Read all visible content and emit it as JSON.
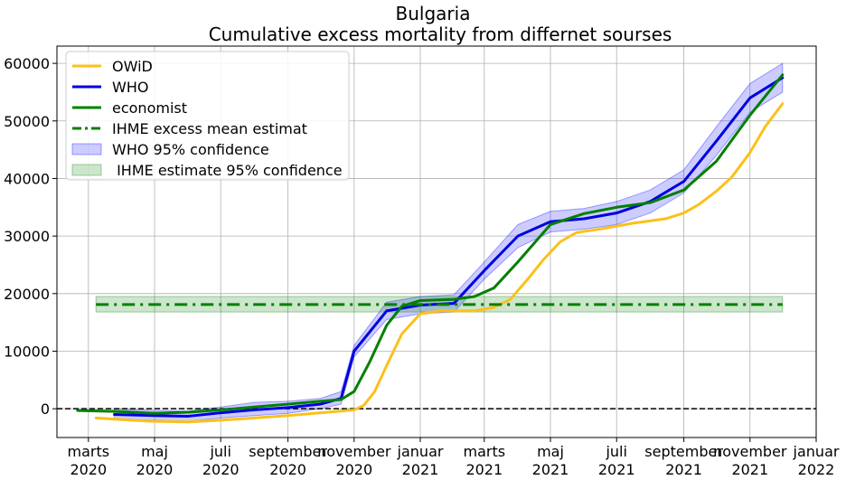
{
  "chart_data": {
    "type": "line",
    "title": "Bulgaria",
    "subtitle": "Cumulative excess mortality from differnet sourses",
    "xlabel": "",
    "ylabel": "",
    "x_range": [
      "2020-02-01",
      "2022-01-01"
    ],
    "ylim": [
      -5000,
      63000
    ],
    "grid": true,
    "legend_position": "top-left",
    "zero_line": true,
    "x_ticks": [
      {
        "date": "2020-03-01",
        "line1": "marts",
        "line2": "2020"
      },
      {
        "date": "2020-05-01",
        "line1": "maj",
        "line2": "2020"
      },
      {
        "date": "2020-07-01",
        "line1": "juli",
        "line2": "2020"
      },
      {
        "date": "2020-09-01",
        "line1": "september",
        "line2": "2020"
      },
      {
        "date": "2020-11-01",
        "line1": "november",
        "line2": "2020"
      },
      {
        "date": "2021-01-01",
        "line1": "januar",
        "line2": "2021"
      },
      {
        "date": "2021-03-01",
        "line1": "marts",
        "line2": "2021"
      },
      {
        "date": "2021-05-01",
        "line1": "maj",
        "line2": "2021"
      },
      {
        "date": "2021-07-01",
        "line1": "juli",
        "line2": "2021"
      },
      {
        "date": "2021-09-01",
        "line1": "september",
        "line2": "2021"
      },
      {
        "date": "2021-11-01",
        "line1": "november",
        "line2": "2021"
      },
      {
        "date": "2022-01-01",
        "line1": "januar",
        "line2": "2022"
      }
    ],
    "y_ticks": [
      {
        "value": 0,
        "label": "0"
      },
      {
        "value": 10000,
        "label": "10000"
      },
      {
        "value": 20000,
        "label": "20000"
      },
      {
        "value": 30000,
        "label": "30000"
      },
      {
        "value": 40000,
        "label": "40000"
      },
      {
        "value": 50000,
        "label": "50000"
      },
      {
        "value": 60000,
        "label": "60000"
      }
    ],
    "series": [
      {
        "name": "OWiD",
        "color": "#fac11b",
        "style": "solid",
        "points": [
          [
            "2020-03-08",
            -1600
          ],
          [
            "2020-04-01",
            -1900
          ],
          [
            "2020-05-01",
            -2200
          ],
          [
            "2020-06-01",
            -2300
          ],
          [
            "2020-07-01",
            -2000
          ],
          [
            "2020-08-01",
            -1600
          ],
          [
            "2020-09-01",
            -1200
          ],
          [
            "2020-10-01",
            -700
          ],
          [
            "2020-10-20",
            -400
          ],
          [
            "2020-11-01",
            -200
          ],
          [
            "2020-11-10",
            600
          ],
          [
            "2020-11-20",
            3000
          ],
          [
            "2020-12-01",
            7500
          ],
          [
            "2020-12-15",
            13000
          ],
          [
            "2021-01-01",
            16500
          ],
          [
            "2021-01-20",
            17000
          ],
          [
            "2021-02-20",
            17000
          ],
          [
            "2021-03-10",
            17600
          ],
          [
            "2021-03-25",
            19000
          ],
          [
            "2021-04-10",
            22500
          ],
          [
            "2021-04-25",
            26000
          ],
          [
            "2021-05-10",
            29000
          ],
          [
            "2021-05-25",
            30600
          ],
          [
            "2021-06-15",
            31200
          ],
          [
            "2021-07-15",
            32200
          ],
          [
            "2021-08-15",
            33000
          ],
          [
            "2021-09-01",
            34000
          ],
          [
            "2021-09-15",
            35500
          ],
          [
            "2021-10-01",
            37800
          ],
          [
            "2021-10-15",
            40200
          ],
          [
            "2021-11-01",
            44500
          ],
          [
            "2021-11-15",
            49000
          ],
          [
            "2021-12-01",
            53000
          ]
        ]
      },
      {
        "name": "WHO",
        "color": "#0000e0",
        "style": "solid",
        "points": [
          [
            "2020-03-25",
            -1000
          ],
          [
            "2020-05-01",
            -1200
          ],
          [
            "2020-06-01",
            -1300
          ],
          [
            "2020-07-01",
            -700
          ],
          [
            "2020-08-01",
            -200
          ],
          [
            "2020-09-01",
            200
          ],
          [
            "2020-10-01",
            800
          ],
          [
            "2020-10-20",
            1800
          ],
          [
            "2020-11-01",
            10000
          ],
          [
            "2020-12-01",
            17000
          ],
          [
            "2021-01-01",
            18000
          ],
          [
            "2021-02-01",
            18300
          ],
          [
            "2021-03-01",
            24000
          ],
          [
            "2021-04-01",
            30000
          ],
          [
            "2021-05-01",
            32500
          ],
          [
            "2021-06-01",
            33000
          ],
          [
            "2021-07-01",
            34000
          ],
          [
            "2021-08-01",
            36000
          ],
          [
            "2021-09-01",
            39500
          ],
          [
            "2021-10-01",
            46500
          ],
          [
            "2021-11-01",
            54000
          ],
          [
            "2021-12-01",
            57500
          ]
        ]
      },
      {
        "name": "economist",
        "color": "#008000",
        "style": "solid",
        "points": [
          [
            "2020-02-20",
            -300
          ],
          [
            "2020-04-01",
            -500
          ],
          [
            "2020-05-01",
            -800
          ],
          [
            "2020-06-01",
            -600
          ],
          [
            "2020-07-01",
            -200
          ],
          [
            "2020-08-01",
            300
          ],
          [
            "2020-09-01",
            800
          ],
          [
            "2020-10-01",
            1300
          ],
          [
            "2020-10-20",
            1600
          ],
          [
            "2020-11-01",
            3000
          ],
          [
            "2020-11-15",
            8000
          ],
          [
            "2020-12-01",
            14500
          ],
          [
            "2020-12-15",
            17800
          ],
          [
            "2021-01-01",
            18800
          ],
          [
            "2021-02-01",
            19000
          ],
          [
            "2021-02-20",
            19500
          ],
          [
            "2021-03-10",
            21000
          ],
          [
            "2021-04-01",
            25500
          ],
          [
            "2021-05-01",
            32000
          ],
          [
            "2021-06-01",
            33900
          ],
          [
            "2021-07-01",
            35000
          ],
          [
            "2021-08-01",
            35800
          ],
          [
            "2021-09-01",
            38000
          ],
          [
            "2021-10-01",
            43000
          ],
          [
            "2021-11-01",
            51000
          ],
          [
            "2021-12-01",
            58000
          ]
        ]
      },
      {
        "name": "IHME excess mean estimat",
        "color": "#008000",
        "style": "dashdot",
        "points": [
          [
            "2020-03-08",
            18100
          ],
          [
            "2021-12-01",
            18100
          ]
        ]
      }
    ],
    "bands": [
      {
        "name": "WHO 95% confidence",
        "color": "#0000ff",
        "opacity": 0.2,
        "points": [
          [
            "2020-03-25",
            -1900,
            0
          ],
          [
            "2020-05-01",
            -2000,
            -300
          ],
          [
            "2020-06-01",
            -2200,
            -400
          ],
          [
            "2020-07-01",
            -1600,
            300
          ],
          [
            "2020-08-01",
            -1200,
            1100
          ],
          [
            "2020-09-01",
            -800,
            1300
          ],
          [
            "2020-10-01",
            0,
            1800
          ],
          [
            "2020-10-20",
            800,
            3000
          ],
          [
            "2020-11-01",
            9000,
            11000
          ],
          [
            "2020-12-01",
            15500,
            18500
          ],
          [
            "2021-01-01",
            16500,
            19500
          ],
          [
            "2021-02-01",
            16800,
            19800
          ],
          [
            "2021-03-01",
            22500,
            25500
          ],
          [
            "2021-04-01",
            28000,
            32000
          ],
          [
            "2021-05-01",
            30700,
            34300
          ],
          [
            "2021-06-01",
            31200,
            34800
          ],
          [
            "2021-07-01",
            32000,
            36000
          ],
          [
            "2021-08-01",
            34000,
            38000
          ],
          [
            "2021-09-01",
            37500,
            41500
          ],
          [
            "2021-10-01",
            44000,
            49000
          ],
          [
            "2021-11-01",
            51500,
            56500
          ],
          [
            "2021-12-01",
            55000,
            60000
          ]
        ]
      },
      {
        "name": " IHME estimate 95% confidence",
        "color": "#008000",
        "opacity": 0.2,
        "points": [
          [
            "2020-03-08",
            16800,
            19500
          ],
          [
            "2021-12-01",
            16800,
            19500
          ]
        ]
      }
    ]
  }
}
